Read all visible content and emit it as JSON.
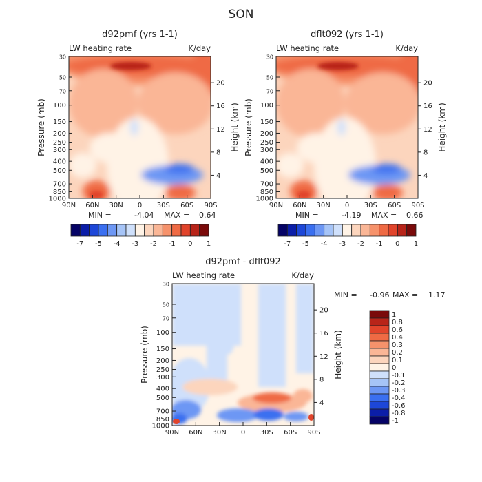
{
  "page": {
    "season_title": "SON"
  },
  "palettes": {
    "top": [
      "#050366",
      "#0b1ea8",
      "#1d47d8",
      "#3a6ff0",
      "#6d97f4",
      "#a6c4f7",
      "#cfe0fb",
      "#fff3e6",
      "#fcd5bd",
      "#fab696",
      "#f6926b",
      "#ef6a44",
      "#e1442b",
      "#b82419",
      "#7a0a0a"
    ],
    "diff": [
      "#050366",
      "#0b1ea8",
      "#1d47d8",
      "#3a6ff0",
      "#6d97f4",
      "#a6c4f7",
      "#cfe0fb",
      "#fff3e6",
      "#fcd5bd",
      "#fab696",
      "#f6926b",
      "#ef6a44",
      "#e1442b",
      "#b82419",
      "#7a0a0a"
    ]
  },
  "chart_data": [
    {
      "type": "heatmap",
      "title": "d92pmf (yrs 1-1)",
      "subtitle_left": "LW heating rate",
      "subtitle_right": "K/day",
      "ylabel": "Pressure (mb)",
      "ylabel_right": "Height (km)",
      "x_ticks": [
        "90N",
        "60N",
        "30N",
        "0",
        "30S",
        "60S",
        "90S"
      ],
      "y_ticks": [
        "30",
        "50",
        "70",
        "100",
        "150",
        "200",
        "250",
        "300",
        "400",
        "500",
        "700",
        "850",
        "1000"
      ],
      "y_ticks_right": [
        "20",
        "16",
        "12",
        "8",
        "4"
      ],
      "min_label": "MIN =",
      "min_value": "-4.04",
      "max_label": "MAX =",
      "max_value": "0.64",
      "colorbar_labels": [
        "-7",
        "-5",
        "-4",
        "-3",
        "-2",
        "-1",
        "0",
        "1"
      ]
    },
    {
      "type": "heatmap",
      "title": "dflt092 (yrs 1-1)",
      "subtitle_left": "LW heating rate",
      "subtitle_right": "K/day",
      "ylabel": "Pressure (mb)",
      "ylabel_right": "Height (km)",
      "x_ticks": [
        "90N",
        "60N",
        "30N",
        "0",
        "30S",
        "60S",
        "90S"
      ],
      "y_ticks": [
        "30",
        "50",
        "70",
        "100",
        "150",
        "200",
        "250",
        "300",
        "400",
        "500",
        "700",
        "850",
        "1000"
      ],
      "y_ticks_right": [
        "20",
        "16",
        "12",
        "8",
        "4"
      ],
      "min_label": "MIN =",
      "min_value": "-4.19",
      "max_label": "MAX =",
      "max_value": "0.66",
      "colorbar_labels": [
        "-7",
        "-5",
        "-4",
        "-3",
        "-2",
        "-1",
        "0",
        "1"
      ]
    },
    {
      "type": "heatmap",
      "title": "d92pmf - dflt092",
      "subtitle_left": "LW heating rate",
      "subtitle_right": "K/day",
      "ylabel": "Pressure (mb)",
      "ylabel_right": "Height (km)",
      "x_ticks": [
        "90N",
        "60N",
        "30N",
        "0",
        "30S",
        "60S",
        "90S"
      ],
      "y_ticks": [
        "30",
        "50",
        "70",
        "100",
        "150",
        "200",
        "250",
        "300",
        "400",
        "500",
        "700",
        "850",
        "1000"
      ],
      "y_ticks_right": [
        "20",
        "16",
        "12",
        "8",
        "4"
      ],
      "min_label": "MIN =",
      "min_value": "-0.96",
      "max_label": "MAX =",
      "max_value": "1.17",
      "colorbar_labels": [
        "1",
        "0.8",
        "0.6",
        "0.4",
        "0.3",
        "0.2",
        "0.1",
        "0",
        "-0.1",
        "-0.2",
        "-0.3",
        "-0.4",
        "-0.6",
        "-0.8",
        "-1"
      ]
    }
  ]
}
